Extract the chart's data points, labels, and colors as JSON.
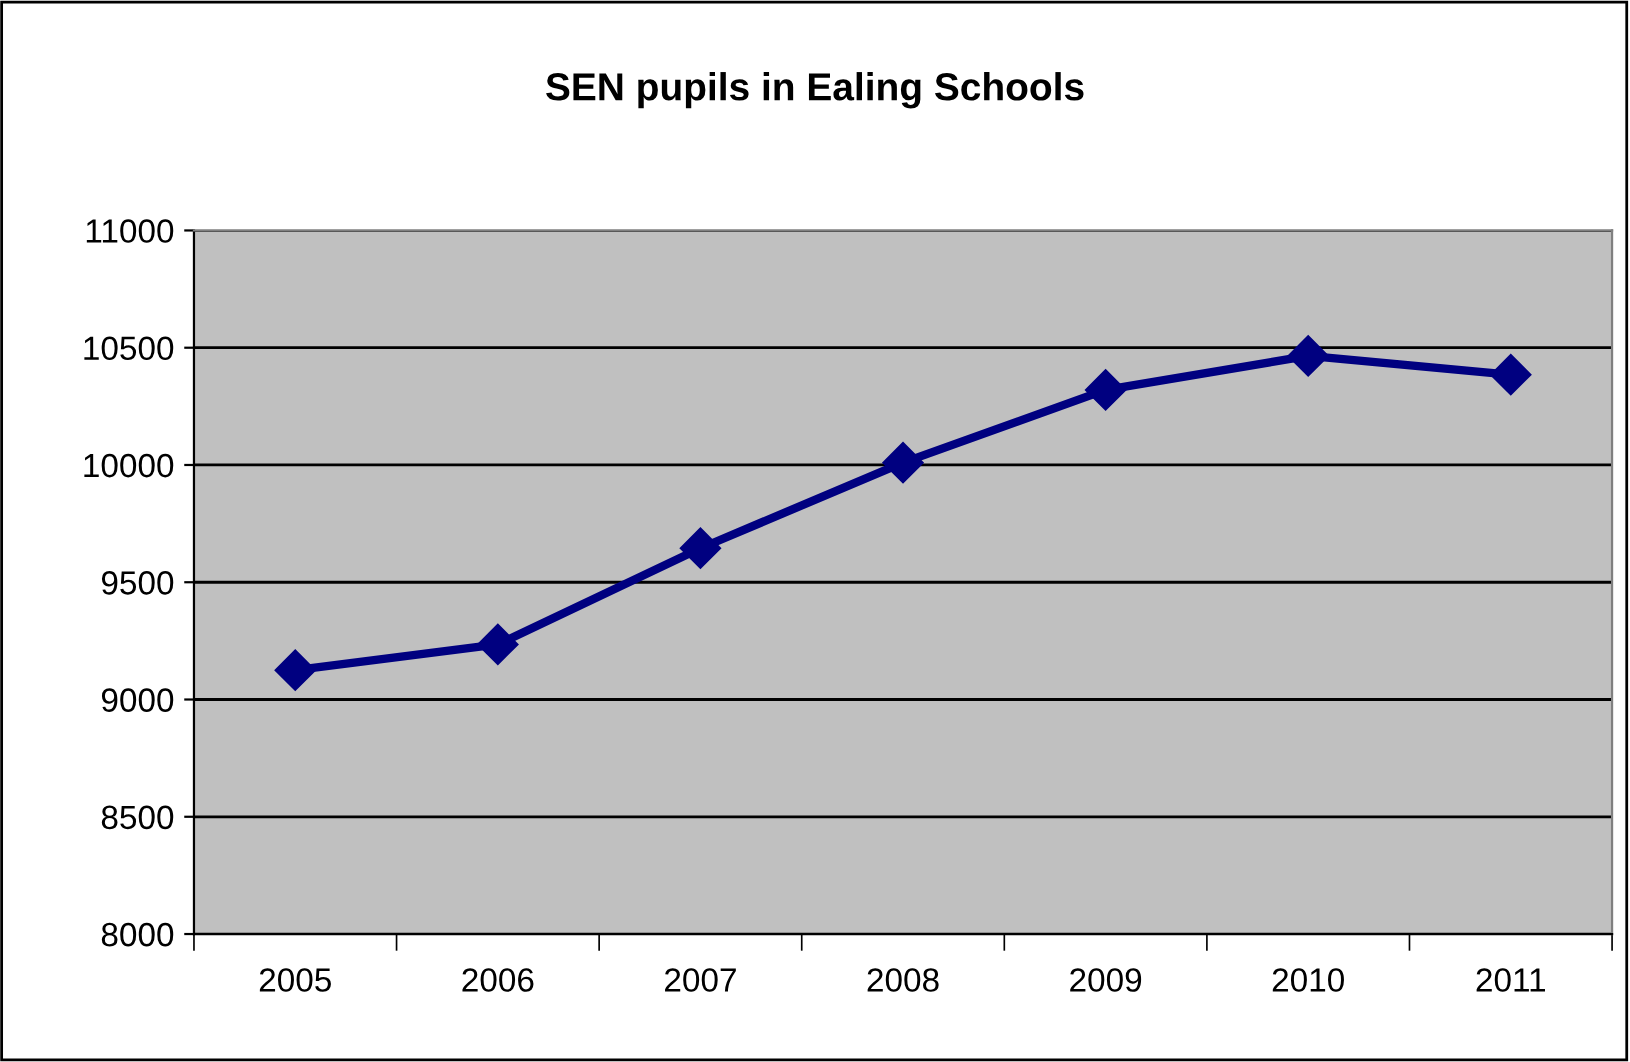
{
  "chart_data": {
    "type": "line",
    "title": "SEN pupils in Ealing Schools",
    "categories": [
      "2005",
      "2006",
      "2007",
      "2008",
      "2009",
      "2010",
      "2011"
    ],
    "series": [
      {
        "color": "#000080",
        "values": [
          9125,
          9235,
          9645,
          10010,
          10320,
          10465,
          10385
        ]
      }
    ],
    "ylim": [
      8000,
      11000
    ],
    "yticks": [
      8000,
      8500,
      9000,
      9500,
      10000,
      10500,
      11000
    ],
    "grid": "y",
    "legend": false,
    "marker": "diamond",
    "line_style": "solid"
  }
}
